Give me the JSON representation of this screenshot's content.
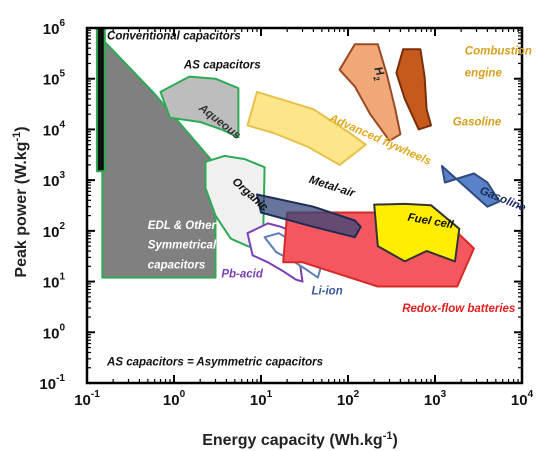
{
  "chart_data": {
    "type": "area",
    "title": "",
    "xlabel": "Energy capacity (Wh.kg",
    "xlabel_sup": "-1",
    "xlabel_end": ")",
    "ylabel": "Peak power (W.kg",
    "ylabel_sup": "-1",
    "ylabel_end": ")",
    "x_scale": "log",
    "y_scale": "log",
    "xlim": [
      0.1,
      10000
    ],
    "ylim": [
      0.1,
      1000000
    ],
    "grid": false,
    "x_ticks": [
      {
        "v": 0.1,
        "base": "10",
        "exp": "-1"
      },
      {
        "v": 1,
        "base": "10",
        "exp": "0"
      },
      {
        "v": 10,
        "base": "10",
        "exp": "1"
      },
      {
        "v": 100,
        "base": "10",
        "exp": "2"
      },
      {
        "v": 1000,
        "base": "10",
        "exp": "3"
      },
      {
        "v": 10000,
        "base": "10",
        "exp": "4"
      }
    ],
    "y_ticks": [
      {
        "v": 0.1,
        "base": "10",
        "exp": "-1"
      },
      {
        "v": 1,
        "base": "10",
        "exp": "0"
      },
      {
        "v": 10,
        "base": "10",
        "exp": "1"
      },
      {
        "v": 100,
        "base": "10",
        "exp": "2"
      },
      {
        "v": 1000,
        "base": "10",
        "exp": "3"
      },
      {
        "v": 10000,
        "base": "10",
        "exp": "4"
      },
      {
        "v": 100000,
        "base": "10",
        "exp": "5"
      },
      {
        "v": 1000000,
        "base": "10",
        "exp": "6"
      }
    ],
    "regions": [
      {
        "id": "edl",
        "fill": "#808080",
        "stroke": "#2eaa55",
        "points": [
          [
            0.15,
            600000
          ],
          [
            0.6,
            50000
          ],
          [
            3.0,
            2000
          ],
          [
            3.0,
            12
          ],
          [
            0.15,
            12
          ]
        ]
      },
      {
        "id": "conventional",
        "fill": "#111111",
        "stroke": "#2eaa55",
        "points": [
          [
            0.13,
            1000000
          ],
          [
            0.16,
            1000000
          ],
          [
            0.16,
            1500
          ],
          [
            0.13,
            1500
          ]
        ]
      },
      {
        "id": "organic",
        "fill": "#f0f0f0",
        "stroke": "#2eaa55",
        "points": [
          [
            2.3,
            2300
          ],
          [
            3.8,
            3000
          ],
          [
            6.5,
            2600
          ],
          [
            11,
            1800
          ],
          [
            10.5,
            40
          ],
          [
            7,
            50
          ],
          [
            4.5,
            70
          ],
          [
            3.0,
            200
          ],
          [
            2.3,
            700
          ]
        ]
      },
      {
        "id": "aqueous",
        "fill": "#bdbdbd",
        "stroke": "#2eaa55",
        "points": [
          [
            0.7,
            55000
          ],
          [
            1.5,
            110000
          ],
          [
            3.0,
            100000
          ],
          [
            5.5,
            65000
          ],
          [
            5.5,
            7000
          ],
          [
            3.5,
            10000
          ],
          [
            2.0,
            14000
          ],
          [
            0.9,
            17000
          ]
        ]
      },
      {
        "id": "flywheels",
        "fill": "#fde58a",
        "stroke": "#e7c04a",
        "points": [
          [
            9,
            55000
          ],
          [
            40,
            25000
          ],
          [
            100,
            9000
          ],
          [
            160,
            5000
          ],
          [
            80,
            2000
          ],
          [
            35,
            4500
          ],
          [
            14,
            8500
          ],
          [
            7,
            12000
          ]
        ]
      },
      {
        "id": "pbacid",
        "fill": "#ffffff",
        "stroke": "#7b3fb5",
        "points": [
          [
            7,
            90
          ],
          [
            12,
            140
          ],
          [
            17,
            120
          ],
          [
            25,
            90
          ],
          [
            30,
            10
          ],
          [
            25,
            11
          ],
          [
            18,
            16
          ],
          [
            12,
            24
          ],
          [
            8,
            33
          ]
        ]
      },
      {
        "id": "liion",
        "fill": "#ffffff",
        "stroke": "#5a7fb8",
        "points": [
          [
            11,
            75
          ],
          [
            16,
            90
          ],
          [
            22,
            65
          ],
          [
            35,
            40
          ],
          [
            50,
            22
          ],
          [
            45,
            12
          ],
          [
            32,
            18
          ],
          [
            22,
            27
          ],
          [
            15,
            38
          ]
        ]
      },
      {
        "id": "redox",
        "fill": "#f5575e",
        "stroke": "#d62a2a",
        "points": [
          [
            20,
            230
          ],
          [
            150,
            230
          ],
          [
            280,
            230
          ],
          [
            800,
            200
          ],
          [
            1400,
            140
          ],
          [
            2800,
            45
          ],
          [
            1800,
            8
          ],
          [
            220,
            8
          ],
          [
            30,
            24
          ],
          [
            18,
            24
          ]
        ]
      },
      {
        "id": "metalair",
        "fill": "#34457a",
        "stroke": "#1e2b55",
        "opacity": 0.75,
        "points": [
          [
            9,
            520
          ],
          [
            40,
            300
          ],
          [
            120,
            160
          ],
          [
            140,
            120
          ],
          [
            120,
            75
          ],
          [
            40,
            120
          ],
          [
            10,
            230
          ]
        ]
      },
      {
        "id": "fuelcell",
        "fill": "#ffee00",
        "stroke": "#333333",
        "points": [
          [
            200,
            330
          ],
          [
            450,
            340
          ],
          [
            900,
            320
          ],
          [
            1900,
            110
          ],
          [
            1700,
            25
          ],
          [
            800,
            40
          ],
          [
            450,
            25
          ],
          [
            220,
            50
          ]
        ]
      },
      {
        "id": "gasoline",
        "fill": "#5a82c8",
        "stroke": "#2f4b80",
        "points": [
          [
            1200,
            1900
          ],
          [
            4000,
            300
          ],
          [
            5500,
            380
          ],
          [
            4000,
            900
          ],
          [
            2800,
            1350
          ],
          [
            1300,
            900
          ]
        ]
      },
      {
        "id": "h2",
        "fill": "#f0a878",
        "stroke": "#9a4a24",
        "points": [
          [
            120,
            480000
          ],
          [
            220,
            480000
          ],
          [
            280,
            120000
          ],
          [
            350,
            25000
          ],
          [
            400,
            8000
          ],
          [
            300,
            6000
          ],
          [
            180,
            20000
          ],
          [
            120,
            70000
          ],
          [
            80,
            150000
          ]
        ]
      },
      {
        "id": "combustion",
        "fill": "#c55a1c",
        "stroke": "#7a2e0a",
        "points": [
          [
            430,
            380000
          ],
          [
            680,
            380000
          ],
          [
            760,
            110000
          ],
          [
            800,
            25000
          ],
          [
            900,
            12000
          ],
          [
            650,
            10000
          ],
          [
            450,
            40000
          ],
          [
            360,
            130000
          ]
        ]
      }
    ],
    "annotations": [
      {
        "id": "conventional",
        "text": "Conventional capacitors",
        "x": 0.17,
        "y": 600000,
        "color": "#111111",
        "rotate": 0
      },
      {
        "id": "as-capacitors",
        "text": "AS capacitors",
        "x": 1.3,
        "y": 160000,
        "color": "#111111",
        "rotate": 0
      },
      {
        "id": "aqueous",
        "text": "Aqueous",
        "x": 1.9,
        "y": 25000,
        "color": "#333333",
        "rotate": 38
      },
      {
        "id": "organic",
        "text": "Organic",
        "x": 4.6,
        "y": 900,
        "color": "#111111",
        "rotate": 42
      },
      {
        "id": "flywheels",
        "text": "Advanced flywheels",
        "x": 60,
        "y": 15000,
        "color": "#e0a820",
        "rotate": 24
      },
      {
        "id": "metalair",
        "text": "Metal-air",
        "x": 35,
        "y": 900,
        "color": "#111111",
        "rotate": 18
      },
      {
        "id": "fuelcell",
        "text": "Fuel cell",
        "x": 480,
        "y": 160,
        "color": "#111111",
        "rotate": 10
      },
      {
        "id": "gasoline-right",
        "text": "Gasoline",
        "x": 3200,
        "y": 550,
        "color": "#1a2a60",
        "rotate": 22
      },
      {
        "id": "edl",
        "text": "EDL & Other",
        "x": 0.5,
        "y": 110,
        "color": "#ffffff",
        "rotate": 0
      },
      {
        "id": "edl2",
        "text": "Symmetrical",
        "x": 0.5,
        "y": 45,
        "color": "#ffffff",
        "rotate": 0
      },
      {
        "id": "edl3",
        "text": "capacitors",
        "x": 0.5,
        "y": 18,
        "color": "#ffffff",
        "rotate": 0
      },
      {
        "id": "pbacid",
        "text": "Pb-acid",
        "x": 3.5,
        "y": 12,
        "color": "#7b3fb5",
        "rotate": 0
      },
      {
        "id": "liion",
        "text": "Li-ion",
        "x": 38,
        "y": 5.5,
        "color": "#3a5a9a",
        "rotate": 0
      },
      {
        "id": "redox",
        "text": "Redox-flow batteries",
        "x": 420,
        "y": 2.5,
        "color": "#e02020",
        "rotate": 0
      },
      {
        "id": "h2",
        "text": "H",
        "sub": "2",
        "x": 200,
        "y": 160000,
        "color": "#222222",
        "rotate": 70
      },
      {
        "id": "combustion1",
        "text": "Combustion",
        "x": 2200,
        "y": 300000,
        "color": "#d4a020",
        "rotate": 0
      },
      {
        "id": "combustion2",
        "text": "engine",
        "x": 2200,
        "y": 110000,
        "color": "#d4a020",
        "rotate": 0
      },
      {
        "id": "gasoline-top",
        "text": "Gasoline",
        "x": 1600,
        "y": 12000,
        "color": "#d4a020",
        "rotate": 0
      },
      {
        "id": "footnote",
        "text": "AS capacitors = Asymmetric capacitors",
        "x": 0.17,
        "y": 0.22,
        "color": "#111111",
        "rotate": 0
      }
    ]
  }
}
